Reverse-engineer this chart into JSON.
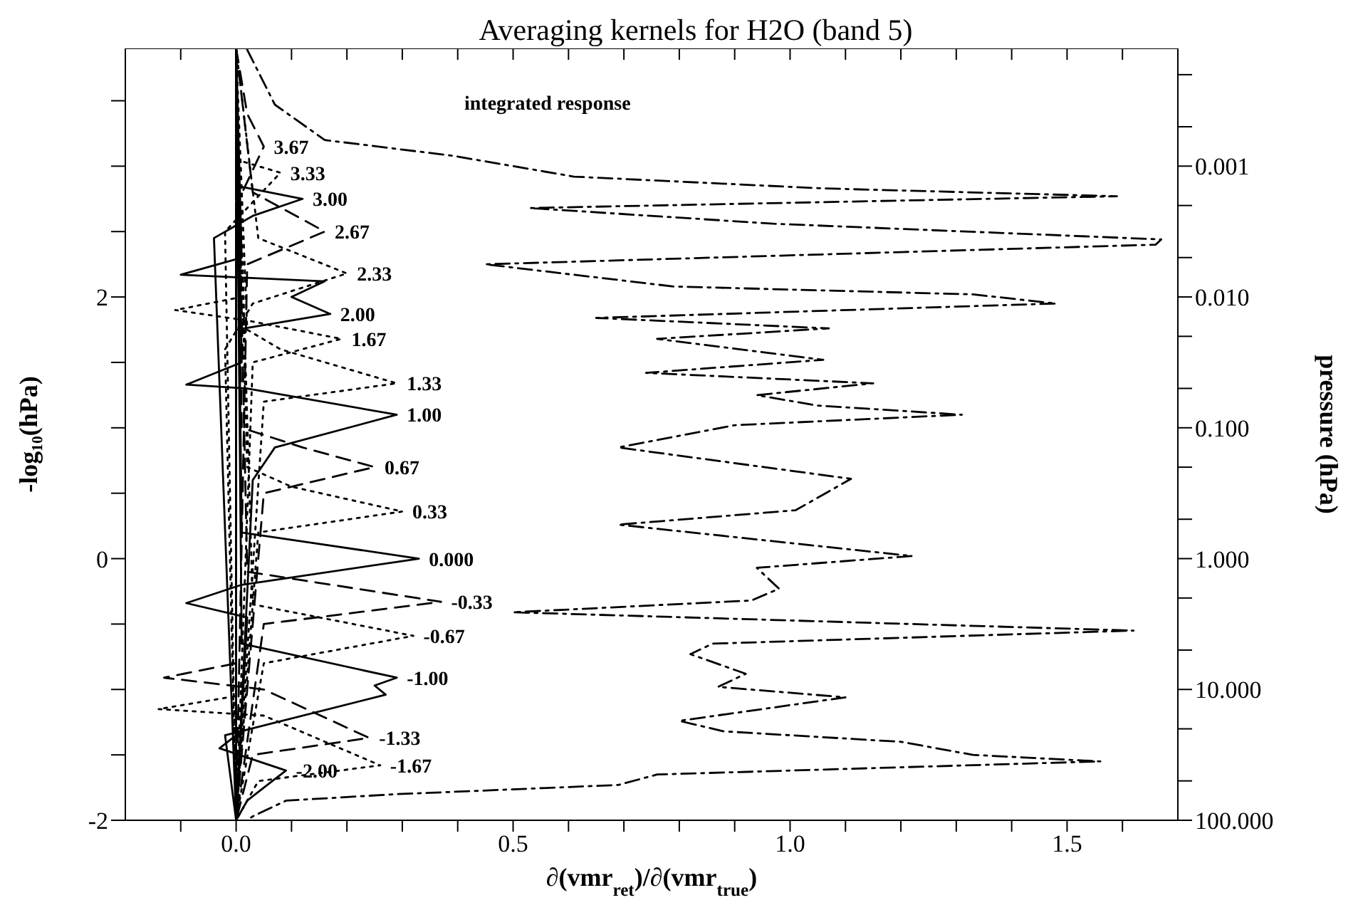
{
  "chart_data": {
    "type": "line",
    "title": "Averaging kernels for H2O (band 5)",
    "xlabel": "∂(vmr$_{ret}$)/∂(vmr$_{true}$)",
    "ylabel": "-log₁₀(hPa)",
    "y2label": "pressure (hPa)",
    "xlim": [
      -0.2,
      1.7
    ],
    "ylim": [
      -2,
      3.9
    ],
    "xticks": [
      {
        "value": -0.1,
        "label": null
      },
      {
        "value": 0,
        "label": "0.0"
      },
      {
        "value": 0.1,
        "label": null
      },
      {
        "value": 0.2,
        "label": null
      },
      {
        "value": 0.3,
        "label": null
      },
      {
        "value": 0.4,
        "label": null
      },
      {
        "value": 0.5,
        "label": "0.5"
      },
      {
        "value": 0.6,
        "label": null
      },
      {
        "value": 0.7,
        "label": null
      },
      {
        "value": 0.8,
        "label": null
      },
      {
        "value": 0.9,
        "label": null
      },
      {
        "value": 1,
        "label": "1.0"
      },
      {
        "value": 1.1,
        "label": null
      },
      {
        "value": 1.2,
        "label": null
      },
      {
        "value": 1.3,
        "label": null
      },
      {
        "value": 1.4,
        "label": null
      },
      {
        "value": 1.5,
        "label": "1.5"
      },
      {
        "value": 1.6,
        "label": null
      }
    ],
    "yticks": [
      -2,
      {
        "value": -1.5,
        "label": null
      },
      {
        "value": -1,
        "label": null
      },
      {
        "value": -0.5,
        "label": null
      },
      0,
      {
        "value": 0.5,
        "label": null
      },
      {
        "value": 1,
        "label": null
      },
      {
        "value": 1.5,
        "label": null
      },
      2,
      {
        "value": 2.5,
        "label": null
      },
      {
        "value": 3,
        "label": null
      },
      {
        "value": 3.5,
        "label": null
      }
    ],
    "y2lim": [
      100,
      0.000126
    ],
    "y2ticks": [
      {
        "value": 100,
        "label": "100.000"
      },
      {
        "value": 50,
        "label": null
      },
      {
        "value": 20,
        "label": null
      },
      {
        "value": 10,
        "label": "10.000"
      },
      {
        "value": 5,
        "label": null
      },
      {
        "value": 2,
        "label": null
      },
      {
        "value": 1,
        "label": "1.000"
      },
      {
        "value": 0.5,
        "label": null
      },
      {
        "value": 0.2,
        "label": null
      },
      {
        "value": 0.1,
        "label": "0.100"
      },
      {
        "value": 0.05,
        "label": null
      },
      {
        "value": 0.02,
        "label": null
      },
      {
        "value": 0.01,
        "label": "0.010"
      },
      {
        "value": 0.005,
        "label": null
      },
      {
        "value": 0.002,
        "label": null
      },
      {
        "value": 0.001,
        "label": "0.001"
      },
      {
        "value": 0.0005,
        "label": null
      },
      {
        "value": 0.0002,
        "label": null
      }
    ],
    "log": "y2",
    "grid": false,
    "legend": false,
    "marker": "none",
    "annotations": [
      "integrated response"
    ],
    "series": [
      {
        "color": "#000000",
        "line_style": "dashdot",
        "x": [
          0.02,
          0.07,
          0.16,
          0.39,
          0.61,
          1.06,
          1.59,
          0.53,
          0.97,
          1.67,
          1.66,
          0.45,
          0.79,
          1.33,
          1.48,
          0.65,
          1.07,
          0.76,
          1.06,
          0.74,
          1.15,
          0.94,
          1.05,
          1.31,
          0.9,
          0.69,
          1.11,
          1.01,
          0.69,
          1.22,
          0.94,
          0.98,
          0.93,
          0.5,
          1.62,
          0.86,
          0.82,
          0.92,
          0.87,
          1.1,
          0.8,
          0.88,
          1.2,
          1.33,
          1.56,
          0.76,
          0.69,
          0.35,
          0.29,
          0.09,
          0.03,
          0.02
        ],
        "values": [
          3.89,
          3.47,
          3.2,
          3.08,
          2.92,
          2.83,
          2.77,
          2.68,
          2.56,
          2.44,
          2.4,
          2.25,
          2.08,
          2.02,
          1.95,
          1.84,
          1.76,
          1.68,
          1.52,
          1.42,
          1.34,
          1.25,
          1.17,
          1.1,
          1.02,
          0.85,
          0.61,
          0.37,
          0.26,
          0.02,
          -0.07,
          -0.23,
          -0.32,
          -0.41,
          -0.55,
          -0.65,
          -0.73,
          -0.88,
          -0.98,
          -1.06,
          -1.24,
          -1.32,
          -1.4,
          -1.5,
          -1.55,
          -1.65,
          -1.73,
          -1.79,
          -1.8,
          -1.85,
          -1.97,
          -2
        ]
      },
      {
        "name": "3.67",
        "color": "#000000",
        "line_style": "dashed",
        "x": [
          0,
          0.02,
          0.05,
          0,
          0
        ],
        "values": [
          3.9,
          3.4,
          3.15,
          2.7,
          -2
        ]
      },
      {
        "name": "3.33",
        "color": "#000000",
        "line_style": "dotted",
        "x": [
          0,
          0,
          0.08,
          -0.02,
          0
        ],
        "values": [
          3.9,
          3.05,
          2.95,
          2.5,
          -2
        ]
      },
      {
        "name": "3.00",
        "color": "#000000",
        "line_style": "solid",
        "x": [
          0,
          0,
          0.12,
          0.03,
          -0.04,
          0
        ],
        "values": [
          3.9,
          2.85,
          2.75,
          2.62,
          2.45,
          -2
        ]
      },
      {
        "name": "2.67",
        "color": "#000000",
        "line_style": "dashed",
        "x": [
          0,
          0.03,
          0.16,
          0.02,
          0
        ],
        "values": [
          3.9,
          2.8,
          2.5,
          2.25,
          -2
        ]
      },
      {
        "name": "2.33",
        "color": "#000000",
        "line_style": "dotted",
        "x": [
          0,
          0.04,
          0.2,
          0.03,
          -0.02,
          0
        ],
        "values": [
          3.9,
          2.45,
          2.18,
          1.95,
          1.6,
          -2
        ]
      },
      {
        "name": "2.00",
        "color": "#000000",
        "line_style": "solid",
        "x": [
          0,
          0.01,
          -0.1,
          0.16,
          0.1,
          0.17,
          0,
          0
        ],
        "values": [
          3.9,
          2.3,
          2.17,
          2.12,
          2,
          1.87,
          1.75,
          -2
        ]
      },
      {
        "name": "1.67",
        "color": "#000000",
        "line_style": "dotted",
        "x": [
          0,
          0.01,
          -0.11,
          0.02,
          0.19,
          0.03,
          0
        ],
        "values": [
          3.9,
          2,
          1.9,
          1.82,
          1.68,
          1.5,
          -2
        ]
      },
      {
        "name": "1.33",
        "color": "#000000",
        "line_style": "dotted",
        "x": [
          0,
          0.02,
          0.08,
          0.29,
          0.05,
          0
        ],
        "values": [
          3.9,
          1.75,
          1.6,
          1.34,
          1.2,
          -2
        ]
      },
      {
        "name": "1.00",
        "color": "#000000",
        "line_style": "solid",
        "x": [
          0,
          0.01,
          -0.09,
          0.02,
          0.29,
          0.07,
          0.03,
          0
        ],
        "values": [
          3.9,
          1.5,
          1.33,
          1.3,
          1.1,
          0.85,
          0.6,
          -2
        ]
      },
      {
        "name": "0.67",
        "color": "#000000",
        "line_style": "dashed",
        "x": [
          0,
          0.01,
          0.12,
          0.25,
          0.05,
          0
        ],
        "values": [
          3.9,
          1,
          0.85,
          0.7,
          0.5,
          -2
        ]
      },
      {
        "name": "0.33",
        "color": "#000000",
        "line_style": "dotted",
        "x": [
          0,
          0.02,
          0.1,
          0.3,
          0.04,
          0
        ],
        "values": [
          3.9,
          0.7,
          0.55,
          0.36,
          0.2,
          -2
        ]
      },
      {
        "name": "0.000",
        "color": "#000000",
        "line_style": "solid",
        "x": [
          0,
          0.01,
          0.33,
          0.01,
          -0.09,
          0.02,
          0
        ],
        "values": [
          3.9,
          0.2,
          0,
          -0.2,
          -0.34,
          -0.45,
          -2
        ]
      },
      {
        "name": "-0.33",
        "color": "#000000",
        "line_style": "dashed",
        "x": [
          0,
          0.02,
          0.37,
          0.05,
          0
        ],
        "values": [
          3.9,
          -0.1,
          -0.33,
          -0.5,
          -2
        ]
      },
      {
        "name": "-0.67",
        "color": "#000000",
        "line_style": "dotted",
        "x": [
          0,
          0.03,
          0.32,
          0.05,
          0
        ],
        "values": [
          3.9,
          -0.35,
          -0.59,
          -0.8,
          -2
        ]
      },
      {
        "name": "-1.00",
        "color": "#000000",
        "line_style": "solid",
        "x": [
          0,
          0.01,
          0.29,
          0.25,
          0.27,
          -0.02,
          0
        ],
        "values": [
          3.9,
          -0.65,
          -0.91,
          -0.97,
          -1.04,
          -1.35,
          -2
        ]
      },
      {
        "name": "-1.33",
        "color": "#000000",
        "line_style": "dashed",
        "x": [
          0,
          0,
          -0.13,
          0.05,
          0.24,
          0.03,
          0
        ],
        "values": [
          3.9,
          -0.8,
          -0.91,
          -1,
          -1.37,
          -1.5,
          -2
        ]
      },
      {
        "name": "-1.67",
        "color": "#000000",
        "line_style": "dotted",
        "x": [
          0,
          0,
          -0.14,
          0.05,
          0.26,
          0.04,
          0
        ],
        "values": [
          3.9,
          -1.05,
          -1.15,
          -1.2,
          -1.58,
          -1.7,
          -2
        ]
      },
      {
        "name": "-2.00",
        "color": "#000000",
        "line_style": "solid",
        "x": [
          0,
          0,
          -0.03,
          0.09,
          0.05,
          0.02,
          0
        ],
        "values": [
          3.9,
          -1.35,
          -1.45,
          -1.62,
          -1.75,
          -1.85,
          -2
        ]
      }
    ]
  }
}
